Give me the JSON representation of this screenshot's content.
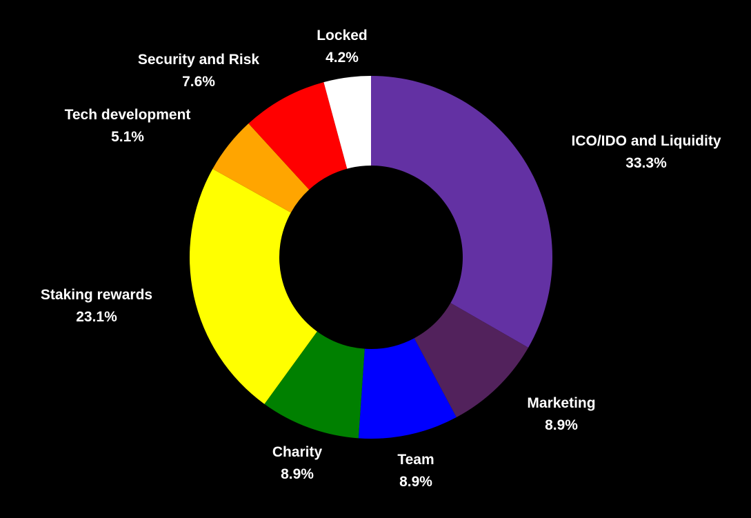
{
  "chart_data": {
    "type": "pie",
    "donut": true,
    "title": "",
    "slices": [
      {
        "name": "ICO/IDO and Liquidity",
        "label": "33.3%",
        "value": 33.3,
        "color": "#6331a3"
      },
      {
        "name": "Marketing",
        "label": "8.9%",
        "value": 8.9,
        "color": "#52225c"
      },
      {
        "name": "Team",
        "label": "8.9%",
        "value": 8.9,
        "color": "#0000ff"
      },
      {
        "name": "Charity",
        "label": "8.9%",
        "value": 8.9,
        "color": "#008000"
      },
      {
        "name": "Staking rewards",
        "label": "23.1%",
        "value": 23.1,
        "color": "#ffff00"
      },
      {
        "name": "Tech development",
        "label": "5.1%",
        "value": 5.1,
        "color": "#ffa500"
      },
      {
        "name": "Security and Risk",
        "label": "7.6%",
        "value": 7.6,
        "color": "#ff0000"
      },
      {
        "name": "Locked",
        "label": "4.2%",
        "value": 4.2,
        "color": "#ffffff"
      }
    ]
  }
}
